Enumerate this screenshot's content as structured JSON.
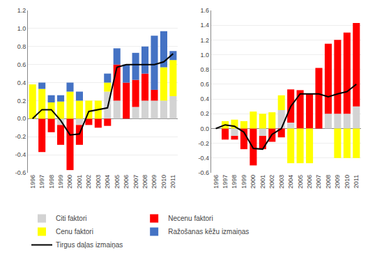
{
  "chart_data": [
    {
      "type": "bar",
      "stacked": true,
      "grid": true,
      "legend": "bottom",
      "categories": [
        "1996",
        "1997",
        "1998",
        "1999",
        "2000",
        "2001",
        "2002",
        "2003",
        "2004",
        "2005",
        "2006",
        "2007",
        "2008",
        "2009",
        "2010",
        "2011"
      ],
      "series": [
        {
          "name": "Citi faktori",
          "color": "#d3d3d3",
          "values": [
            0.0,
            0.0,
            0.0,
            -0.07,
            0.0,
            -0.07,
            0.0,
            0.0,
            0.3,
            0.2,
            0.0,
            0.13,
            0.2,
            0.2,
            0.2,
            0.25
          ]
        },
        {
          "name": "Necenu faktori",
          "color": "#ff0000",
          "values": [
            0.0,
            -0.37,
            -0.15,
            -0.22,
            -0.57,
            -0.22,
            -0.07,
            -0.1,
            -0.08,
            0.4,
            0.4,
            0.3,
            0.3,
            0.12,
            0.0,
            0.0
          ]
        },
        {
          "name": "Cenu faktori",
          "color": "#ffff00",
          "values": [
            0.38,
            0.33,
            0.18,
            0.19,
            0.3,
            0.2,
            0.2,
            0.2,
            0.1,
            0.0,
            0.0,
            0.0,
            0.0,
            0.0,
            0.37,
            0.4
          ]
        },
        {
          "name": "Ražošanas kēžu izmaiņas",
          "color": "#4472c4",
          "values": [
            0.0,
            0.07,
            0.08,
            0.07,
            0.1,
            0.1,
            0.0,
            0.0,
            0.1,
            0.18,
            0.2,
            0.3,
            0.3,
            0.6,
            0.4,
            0.1
          ]
        },
        {
          "name": "Tirgus daļas izmaiņas",
          "type": "line",
          "color": "#000000",
          "values": [
            0.0,
            0.1,
            0.1,
            -0.02,
            -0.18,
            -0.17,
            0.08,
            0.1,
            0.12,
            0.57,
            0.6,
            0.6,
            0.6,
            0.6,
            0.63,
            0.72
          ]
        }
      ],
      "ylim": [
        -0.6,
        1.2
      ],
      "yticks": [
        -0.6,
        -0.4,
        -0.2,
        {
          "value": 0,
          "label": "0.0"
        },
        0.2,
        0.4,
        0.6,
        0.8,
        {
          "value": 1,
          "label": "1.0"
        },
        1.2
      ]
    },
    {
      "type": "bar",
      "stacked": true,
      "grid": true,
      "categories": [
        "1996",
        "1997",
        "1998",
        "1999",
        "2000",
        "2001",
        "2002",
        "2003",
        "2004",
        "2005",
        "2006",
        "2007",
        "2008",
        "2009",
        "2010",
        "2011"
      ],
      "series": [
        {
          "name": "Citi faktori",
          "color": "#d3d3d3",
          "values": [
            0.0,
            0.0,
            -0.1,
            0.0,
            0.0,
            -0.1,
            0.0,
            0.25,
            0.08,
            0.0,
            0.0,
            0.0,
            0.2,
            0.2,
            0.2,
            0.3
          ]
        },
        {
          "name": "Necenu faktori",
          "color": "#ff0000",
          "values": [
            0.0,
            -0.15,
            -0.05,
            -0.28,
            -0.5,
            -0.18,
            -0.18,
            -0.12,
            0.45,
            0.52,
            0.47,
            0.82,
            0.95,
            1.0,
            1.1,
            1.13
          ]
        },
        {
          "name": "Cenu faktori",
          "color": "#ffff00",
          "values": [
            0.0,
            0.1,
            0.12,
            0.1,
            0.23,
            0.2,
            0.22,
            0.2,
            -0.47,
            -0.47,
            -0.47,
            0.0,
            0.0,
            -0.4,
            -0.4,
            -0.4
          ]
        },
        {
          "name": "Ražošanas kēžu izmaiņas",
          "color": "#4472c4",
          "values": [
            0.0,
            0.0,
            0.0,
            0.0,
            0.0,
            0.0,
            0.0,
            0.0,
            0.0,
            0.0,
            0.0,
            0.0,
            0.0,
            0.0,
            0.0,
            0.0
          ]
        },
        {
          "name": "Tirgus daļas izmaiņas",
          "type": "line",
          "color": "#000000",
          "values": [
            0.0,
            0.05,
            0.03,
            -0.05,
            -0.27,
            -0.28,
            -0.08,
            0.0,
            0.3,
            0.47,
            0.47,
            0.47,
            0.43,
            0.47,
            0.5,
            0.6
          ]
        }
      ],
      "ylim": [
        -0.6,
        1.6
      ],
      "yticks": [
        -0.6,
        -0.4,
        -0.2,
        {
          "value": 0,
          "label": "0.0"
        },
        0.2,
        0.4,
        0.6,
        0.8,
        {
          "value": 1,
          "label": "1.0"
        },
        1.2,
        1.4,
        1.6
      ]
    }
  ]
}
